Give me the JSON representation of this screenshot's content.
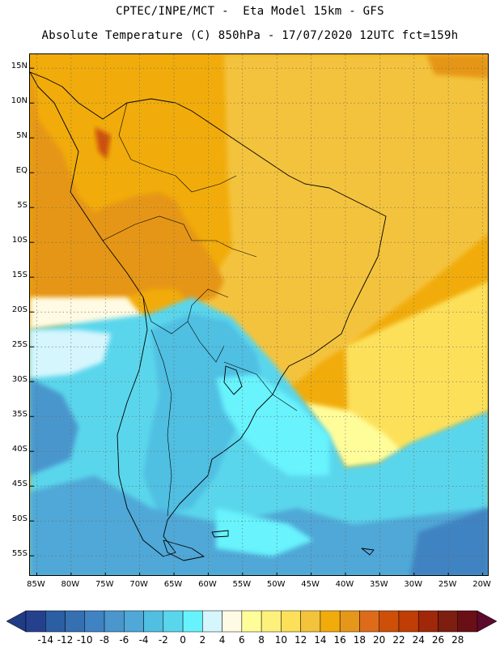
{
  "header": {
    "line1": "CPTEC/INPE/MCT -  Eta Model 15km - GFS",
    "line2": "Absolute Temperature (C) 850hPa - 17/07/2020 12UTC fct=159h"
  },
  "map": {
    "lat_labels": [
      "15N",
      "10N",
      "5N",
      "EQ",
      "5S",
      "10S",
      "15S",
      "20S",
      "25S",
      "30S",
      "35S",
      "40S",
      "45S",
      "50S",
      "55S"
    ],
    "lon_labels": [
      "85W",
      "80W",
      "75W",
      "70W",
      "65W",
      "60W",
      "55W",
      "50W",
      "45W",
      "40W",
      "35W",
      "30W",
      "25W",
      "20W"
    ],
    "lat_range": [
      17,
      -58
    ],
    "lon_range": [
      -86,
      -19
    ],
    "gridlines": true,
    "gridline_style": "dotted",
    "field": "temperature_850hPa_C"
  },
  "colorbar": {
    "labels": [
      "-14",
      "-12",
      "-10",
      "-8",
      "-6",
      "-4",
      "-2",
      "0",
      "2",
      "4",
      "6",
      "8",
      "10",
      "12",
      "14",
      "16",
      "18",
      "20",
      "22",
      "24",
      "26",
      "28"
    ],
    "colors": [
      "#25418e",
      "#2c5ea3",
      "#3570b3",
      "#3f83c2",
      "#4a96cd",
      "#4fa8d7",
      "#50bfe2",
      "#5ad6ec",
      "#67f3fd",
      "#d5f6fd",
      "#fffae3",
      "#fffd9a",
      "#fef17b",
      "#fde05a",
      "#f4c33c",
      "#f1ac0b",
      "#e69618",
      "#dd6b1a",
      "#cd4f08",
      "#c03d05",
      "#a02808",
      "#7d1e10",
      "#6a0f16"
    ],
    "underflow_color": "#1f3b86",
    "overflow_color": "#5c0a2e"
  }
}
